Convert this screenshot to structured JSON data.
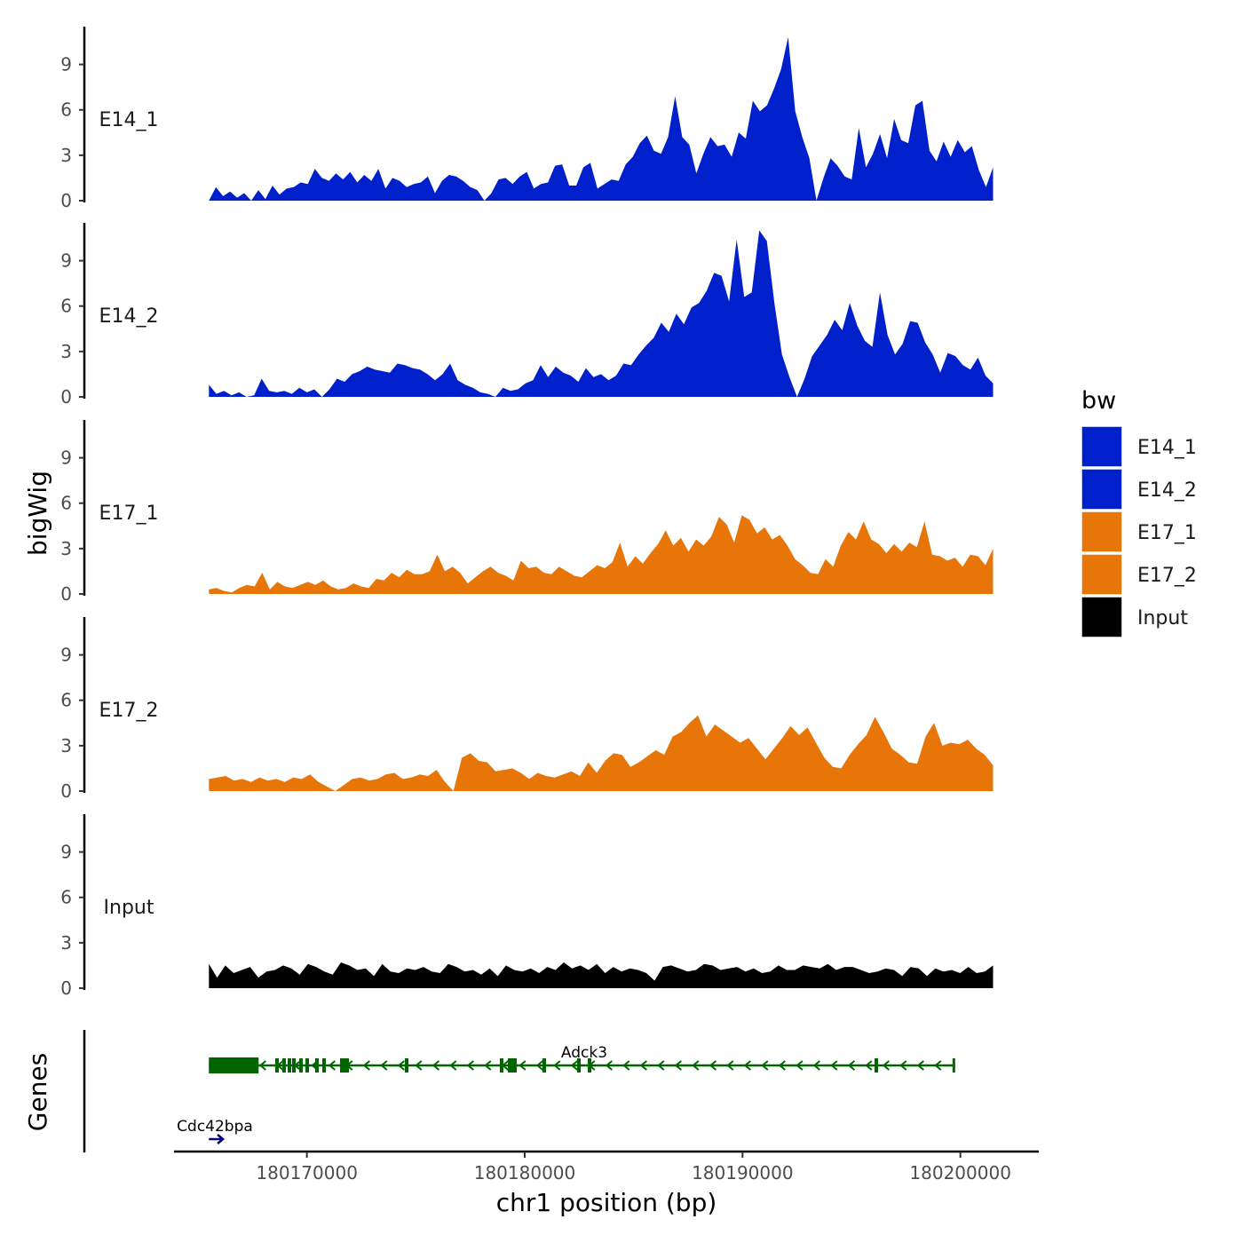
{
  "chart_data": {
    "type": "area",
    "title": "",
    "ylabel": "bigWig",
    "genes_label": "Genes",
    "xlabel": "chr1 position (bp)",
    "x_ticks": [
      180170000,
      180180000,
      180190000,
      180200000
    ],
    "x_tick_labels": [
      "180170000",
      "180180000",
      "180190000",
      "180200000"
    ],
    "xlim": [
      180163900,
      180203600
    ],
    "ylim": [
      0,
      11.5
    ],
    "y_ticks": [
      0,
      3,
      6,
      9
    ],
    "y_tick_labels": [
      "0",
      "3",
      "6",
      "9"
    ],
    "legend": {
      "title": "bw",
      "position": "right",
      "items": [
        {
          "label": "E14_1",
          "color": "#0020cc"
        },
        {
          "label": "E14_2",
          "color": "#0020cc"
        },
        {
          "label": "E17_1",
          "color": "#e87508"
        },
        {
          "label": "E17_2",
          "color": "#e87508"
        },
        {
          "label": "Input",
          "color": "#000000"
        }
      ]
    },
    "series": [
      {
        "name": "E14_1",
        "color": "#0020cc",
        "x_start": 180165500,
        "x_end": 180201500,
        "values": [
          0,
          0.9,
          0.3,
          0.6,
          0.2,
          0.5,
          0,
          0.7,
          0.1,
          1.0,
          0.4,
          0.8,
          0.9,
          1.2,
          1.1,
          2.1,
          1.5,
          1.3,
          1.8,
          1.4,
          1.9,
          1.2,
          1.7,
          1.3,
          2.1,
          0.8,
          1.5,
          1.3,
          0.9,
          1.1,
          1.2,
          1.6,
          0.5,
          1.3,
          1.7,
          1.6,
          1.3,
          0.9,
          0.7,
          0,
          0.5,
          1.4,
          1.5,
          1.1,
          1.6,
          1.9,
          0.8,
          1.1,
          1.2,
          2.3,
          2.4,
          1.0,
          1.0,
          2.2,
          2.5,
          0.8,
          1.1,
          1.4,
          1.3,
          2.4,
          2.9,
          3.8,
          4.3,
          3.3,
          3.1,
          4.2,
          6.9,
          4.2,
          3.7,
          1.8,
          3.1,
          4.2,
          3.6,
          3.7,
          2.9,
          4.5,
          4.1,
          6.6,
          5.9,
          6.3,
          7.4,
          8.7,
          10.8,
          5.9,
          4.2,
          2.8,
          0,
          1.5,
          2.8,
          2.3,
          1.6,
          1.4,
          4.8,
          2.2,
          3.1,
          4.4,
          2.8,
          5.4,
          4.0,
          3.8,
          6.3,
          6.6,
          3.3,
          2.6,
          3.9,
          2.9,
          4.0,
          3.2,
          3.6,
          2.0,
          0.9,
          2.2
        ]
      },
      {
        "name": "E14_2",
        "color": "#0020cc",
        "x_start": 180165500,
        "x_end": 180201500,
        "values": [
          0.8,
          0.2,
          0.4,
          0.1,
          0.3,
          0,
          0.1,
          1.2,
          0.4,
          0.3,
          0.4,
          0.2,
          0.6,
          0.3,
          0.5,
          0,
          0.5,
          1.2,
          1.0,
          1.5,
          1.7,
          2.0,
          1.8,
          1.7,
          1.6,
          2.2,
          2.1,
          1.9,
          1.8,
          1.5,
          1.1,
          1.5,
          2.2,
          1.1,
          0.8,
          0.6,
          0.3,
          0.2,
          0,
          0.6,
          0.4,
          0.5,
          0.9,
          1.1,
          2.1,
          1.3,
          2.0,
          1.6,
          1.4,
          1.0,
          1.9,
          1.3,
          1.5,
          1.1,
          1.4,
          2.2,
          2.1,
          2.8,
          3.4,
          3.9,
          4.9,
          4.3,
          5.5,
          4.8,
          5.9,
          6.2,
          7.0,
          8.2,
          8.0,
          6.3,
          10.4,
          6.6,
          6.9,
          11.0,
          10.3,
          6.2,
          2.8,
          1.3,
          0,
          1.2,
          2.7,
          3.4,
          4.1,
          5.1,
          4.4,
          6.2,
          4.7,
          3.7,
          3.3,
          6.9,
          4.1,
          2.8,
          3.5,
          5.0,
          4.9,
          3.6,
          2.8,
          1.6,
          2.9,
          2.7,
          2.1,
          1.8,
          2.6,
          1.4,
          0.9
        ]
      },
      {
        "name": "E17_1",
        "color": "#e87508",
        "x_start": 180165500,
        "x_end": 180201500,
        "values": [
          0.3,
          0.4,
          0.2,
          0.1,
          0.4,
          0.6,
          0.5,
          1.4,
          0.3,
          0.8,
          0.5,
          0.4,
          0.6,
          0.8,
          0.6,
          0.9,
          0.5,
          0.3,
          0.4,
          0.7,
          0.5,
          0.4,
          1.0,
          0.9,
          1.4,
          1.1,
          1.6,
          1.3,
          1.3,
          1.5,
          2.6,
          1.5,
          1.8,
          1.4,
          0.7,
          1.1,
          1.5,
          1.8,
          1.4,
          1.2,
          0.9,
          2.2,
          1.7,
          1.8,
          1.4,
          1.3,
          1.8,
          1.5,
          1.2,
          1.1,
          1.5,
          1.9,
          1.7,
          2.1,
          3.4,
          1.8,
          2.5,
          2.0,
          2.7,
          3.3,
          4.2,
          3.2,
          3.7,
          2.8,
          3.6,
          3.2,
          3.8,
          5.1,
          4.6,
          3.4,
          5.2,
          4.9,
          4.0,
          4.4,
          3.6,
          3.9,
          3.2,
          2.3,
          1.9,
          1.4,
          1.3,
          2.3,
          1.8,
          3.2,
          4.1,
          3.6,
          4.8,
          3.6,
          3.3,
          2.7,
          3.3,
          2.8,
          3.4,
          3.1,
          4.8,
          2.6,
          2.5,
          2.2,
          2.4,
          1.8,
          2.6,
          2.5,
          1.9,
          3.0
        ]
      },
      {
        "name": "E17_2",
        "color": "#e87508",
        "x_start": 180165500,
        "x_end": 180201500,
        "values": [
          0.8,
          0.9,
          1.0,
          0.7,
          0.8,
          0.6,
          0.9,
          0.7,
          0.8,
          0.6,
          0.9,
          0.8,
          1.1,
          0.6,
          0.3,
          0,
          0.4,
          0.8,
          0.9,
          0.7,
          0.8,
          1.1,
          1.2,
          0.8,
          0.9,
          1.1,
          1.0,
          1.4,
          0.6,
          0,
          2.2,
          2.5,
          2.0,
          1.9,
          1.3,
          1.4,
          1.5,
          1.2,
          0.8,
          1.2,
          1.0,
          0.9,
          1.1,
          1.3,
          1.0,
          1.9,
          1.2,
          2.0,
          2.5,
          2.4,
          1.6,
          1.9,
          2.3,
          2.7,
          2.4,
          3.6,
          3.9,
          4.5,
          5.0,
          3.6,
          4.4,
          4.0,
          3.6,
          3.2,
          3.5,
          2.8,
          2.1,
          2.8,
          3.5,
          4.3,
          3.7,
          4.2,
          3.2,
          2.2,
          1.6,
          1.5,
          2.4,
          3.1,
          3.7,
          4.9,
          3.9,
          2.8,
          2.4,
          1.9,
          1.8,
          3.6,
          4.5,
          3.0,
          3.2,
          3.1,
          3.4,
          2.8,
          2.4,
          1.7
        ]
      },
      {
        "name": "Input",
        "color": "#000000",
        "x_start": 180165500,
        "x_end": 180201500,
        "values": [
          1.6,
          0.7,
          1.5,
          1.0,
          1.2,
          1.4,
          0.7,
          1.1,
          1.2,
          1.5,
          1.3,
          0.9,
          1.6,
          1.4,
          1.1,
          0.9,
          1.7,
          1.5,
          1.2,
          1.3,
          0.8,
          1.6,
          1.1,
          1.0,
          1.3,
          1.2,
          1.4,
          1.1,
          1.0,
          1.6,
          1.4,
          1.1,
          1.2,
          0.9,
          1.3,
          0.8,
          1.5,
          1.2,
          1.1,
          1.3,
          1.0,
          1.4,
          1.2,
          1.7,
          1.3,
          1.5,
          1.2,
          1.6,
          1.0,
          1.4,
          1.1,
          1.3,
          1.2,
          1.0,
          0.5,
          1.4,
          1.5,
          1.3,
          1.1,
          1.2,
          1.6,
          1.5,
          1.2,
          1.3,
          1.4,
          1.1,
          1.3,
          1.0,
          1.1,
          1.5,
          1.2,
          1.2,
          1.5,
          1.4,
          1.3,
          1.6,
          1.2,
          1.4,
          1.4,
          1.2,
          1.0,
          1.1,
          1.3,
          1.2,
          0.8,
          1.4,
          1.3,
          0.8,
          1.3,
          1.1,
          1.2,
          1.0,
          1.4,
          1.0,
          1.1,
          1.5
        ]
      }
    ],
    "genes": [
      {
        "name": "Adck3",
        "color": "#006400",
        "strand": "-",
        "start": 180165500,
        "end": 180199700
      },
      {
        "name": "Cdc42bpa",
        "color": "#000080",
        "strand": "+",
        "start": 180165500,
        "end": 180165900
      }
    ]
  }
}
